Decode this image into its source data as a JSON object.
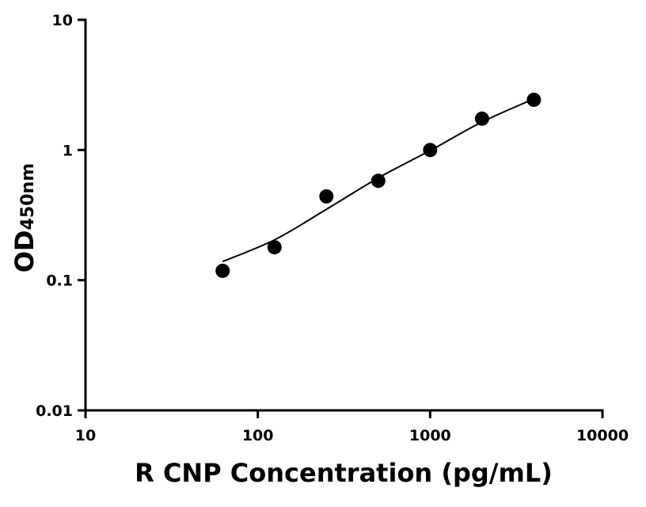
{
  "chart_data": {
    "type": "scatter",
    "xlabel": "R CNP Concentration (pg/mL)",
    "ylabel": "OD",
    "ylabel_subscript": "450nm",
    "x_scale": "log",
    "y_scale": "log",
    "xlim": [
      10,
      10000
    ],
    "ylim": [
      0.01,
      10
    ],
    "xticks": [
      10,
      100,
      1000,
      10000
    ],
    "yticks": [
      0.01,
      0.1,
      1,
      10
    ],
    "x": [
      62.5,
      125,
      250,
      500,
      1000,
      2000,
      4000
    ],
    "series": [
      {
        "style": "markers",
        "color": "#000000",
        "values": [
          0.118,
          0.179,
          0.44,
          0.58,
          1.0,
          1.74,
          2.43
        ]
      },
      {
        "style": "line",
        "color": "#000000",
        "values": [
          0.139,
          0.204,
          0.35,
          0.61,
          0.99,
          1.64,
          2.47
        ]
      }
    ]
  }
}
